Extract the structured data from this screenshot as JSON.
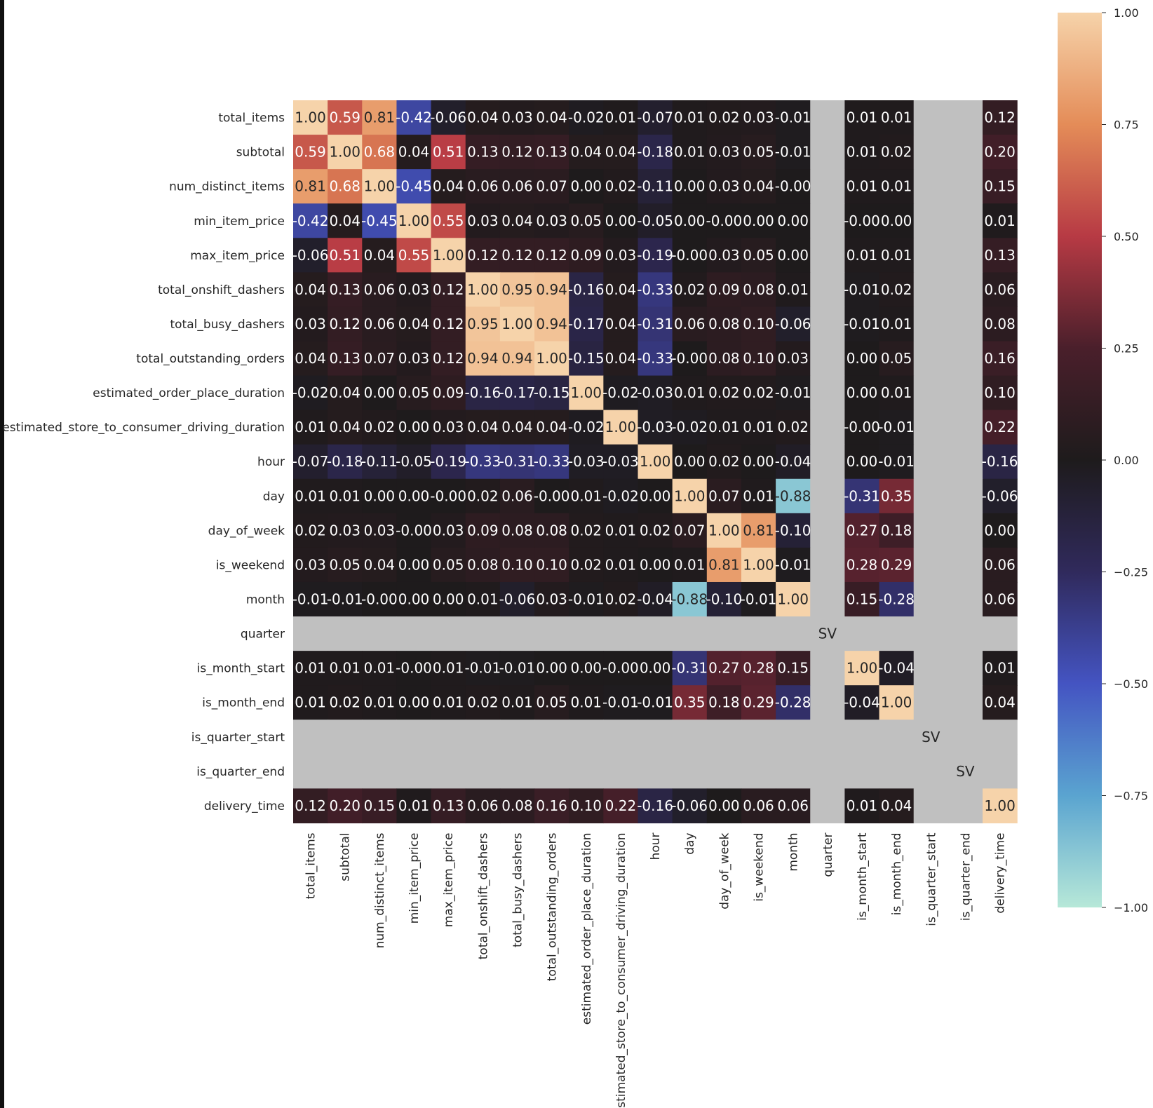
{
  "chart_data": {
    "type": "heatmap",
    "title": "",
    "xlabel": "",
    "ylabel": "",
    "labels": [
      "total_items",
      "subtotal",
      "num_distinct_items",
      "min_item_price",
      "max_item_price",
      "total_onshift_dashers",
      "total_busy_dashers",
      "total_outstanding_orders",
      "estimated_order_place_duration",
      "estimated_store_to_consumer_driving_duration",
      "hour",
      "day",
      "day_of_week",
      "is_weekend",
      "month",
      "quarter",
      "is_month_start",
      "is_month_end",
      "is_quarter_start",
      "is_quarter_end",
      "delivery_time"
    ],
    "cells": [
      [
        "1.00",
        "0.59",
        "0.81",
        "-0.42",
        "-0.06",
        "0.04",
        "0.03",
        "0.04",
        "-0.02",
        "0.01",
        "-0.07",
        "0.01",
        "0.02",
        "0.03",
        "-0.01",
        null,
        "0.01",
        "0.01",
        null,
        null,
        "0.12"
      ],
      [
        "0.59",
        "1.00",
        "0.68",
        "0.04",
        "0.51",
        "0.13",
        "0.12",
        "0.13",
        "0.04",
        "0.04",
        "-0.18",
        "0.01",
        "0.03",
        "0.05",
        "-0.01",
        null,
        "0.01",
        "0.02",
        null,
        null,
        "0.20"
      ],
      [
        "0.81",
        "0.68",
        "1.00",
        "-0.45",
        "0.04",
        "0.06",
        "0.06",
        "0.07",
        "0.00",
        "0.02",
        "-0.11",
        "0.00",
        "0.03",
        "0.04",
        "-0.00",
        null,
        "0.01",
        "0.01",
        null,
        null,
        "0.15"
      ],
      [
        "-0.42",
        "0.04",
        "-0.45",
        "1.00",
        "0.55",
        "0.03",
        "0.04",
        "0.03",
        "0.05",
        "0.00",
        "-0.05",
        "0.00",
        "-0.00",
        "0.00",
        "0.00",
        null,
        "-0.00",
        "0.00",
        null,
        null,
        "0.01"
      ],
      [
        "-0.06",
        "0.51",
        "0.04",
        "0.55",
        "1.00",
        "0.12",
        "0.12",
        "0.12",
        "0.09",
        "0.03",
        "-0.19",
        "-0.00",
        "0.03",
        "0.05",
        "0.00",
        null,
        "0.01",
        "0.01",
        null,
        null,
        "0.13"
      ],
      [
        "0.04",
        "0.13",
        "0.06",
        "0.03",
        "0.12",
        "1.00",
        "0.95",
        "0.94",
        "-0.16",
        "0.04",
        "-0.33",
        "0.02",
        "0.09",
        "0.08",
        "0.01",
        null,
        "-0.01",
        "0.02",
        null,
        null,
        "0.06"
      ],
      [
        "0.03",
        "0.12",
        "0.06",
        "0.04",
        "0.12",
        "0.95",
        "1.00",
        "0.94",
        "-0.17",
        "0.04",
        "-0.31",
        "0.06",
        "0.08",
        "0.10",
        "-0.06",
        null,
        "-0.01",
        "0.01",
        null,
        null,
        "0.08"
      ],
      [
        "0.04",
        "0.13",
        "0.07",
        "0.03",
        "0.12",
        "0.94",
        "0.94",
        "1.00",
        "-0.15",
        "0.04",
        "-0.33",
        "-0.00",
        "0.08",
        "0.10",
        "0.03",
        null,
        "0.00",
        "0.05",
        null,
        null,
        "0.16"
      ],
      [
        "-0.02",
        "0.04",
        "0.00",
        "0.05",
        "0.09",
        "-0.16",
        "-0.17",
        "-0.15",
        "1.00",
        "-0.02",
        "-0.03",
        "0.01",
        "0.02",
        "0.02",
        "-0.01",
        null,
        "0.00",
        "0.01",
        null,
        null,
        "0.10"
      ],
      [
        "0.01",
        "0.04",
        "0.02",
        "0.00",
        "0.03",
        "0.04",
        "0.04",
        "0.04",
        "-0.02",
        "1.00",
        "-0.03",
        "-0.02",
        "0.01",
        "0.01",
        "0.02",
        null,
        "-0.00",
        "-0.01",
        null,
        null,
        "0.22"
      ],
      [
        "-0.07",
        "-0.18",
        "-0.11",
        "-0.05",
        "-0.19",
        "-0.33",
        "-0.31",
        "-0.33",
        "-0.03",
        "-0.03",
        "1.00",
        "0.00",
        "0.02",
        "0.00",
        "-0.04",
        null,
        "0.00",
        "-0.01",
        null,
        null,
        "-0.16"
      ],
      [
        "0.01",
        "0.01",
        "0.00",
        "0.00",
        "-0.00",
        "0.02",
        "0.06",
        "-0.00",
        "0.01",
        "-0.02",
        "0.00",
        "1.00",
        "0.07",
        "0.01",
        "-0.88",
        null,
        "-0.31",
        "0.35",
        null,
        null,
        "-0.06"
      ],
      [
        "0.02",
        "0.03",
        "0.03",
        "-0.00",
        "0.03",
        "0.09",
        "0.08",
        "0.08",
        "0.02",
        "0.01",
        "0.02",
        "0.07",
        "1.00",
        "0.81",
        "-0.10",
        null,
        "0.27",
        "0.18",
        null,
        null,
        "0.00"
      ],
      [
        "0.03",
        "0.05",
        "0.04",
        "0.00",
        "0.05",
        "0.08",
        "0.10",
        "0.10",
        "0.02",
        "0.01",
        "0.00",
        "0.01",
        "0.81",
        "1.00",
        "-0.01",
        null,
        "0.28",
        "0.29",
        null,
        null,
        "0.06"
      ],
      [
        "-0.01",
        "-0.01",
        "-0.00",
        "0.00",
        "0.00",
        "0.01",
        "-0.06",
        "0.03",
        "-0.01",
        "0.02",
        "-0.04",
        "-0.88",
        "-0.10",
        "-0.01",
        "1.00",
        null,
        "0.15",
        "-0.28",
        null,
        null,
        "0.06"
      ],
      [
        null,
        null,
        null,
        null,
        null,
        null,
        null,
        null,
        null,
        null,
        null,
        null,
        null,
        null,
        null,
        null,
        null,
        null,
        null,
        null,
        null
      ],
      [
        "0.01",
        "0.01",
        "0.01",
        "-0.00",
        "0.01",
        "-0.01",
        "-0.01",
        "0.00",
        "0.00",
        "-0.00",
        "0.00",
        "-0.31",
        "0.27",
        "0.28",
        "0.15",
        null,
        "1.00",
        "-0.04",
        null,
        null,
        "0.01"
      ],
      [
        "0.01",
        "0.02",
        "0.01",
        "0.00",
        "0.01",
        "0.02",
        "0.01",
        "0.05",
        "0.01",
        "-0.01",
        "-0.01",
        "0.35",
        "0.18",
        "0.29",
        "-0.28",
        null,
        "-0.04",
        "1.00",
        null,
        null,
        "0.04"
      ],
      [
        null,
        null,
        null,
        null,
        null,
        null,
        null,
        null,
        null,
        null,
        null,
        null,
        null,
        null,
        null,
        null,
        null,
        null,
        null,
        null,
        null
      ],
      [
        null,
        null,
        null,
        null,
        null,
        null,
        null,
        null,
        null,
        null,
        null,
        null,
        null,
        null,
        null,
        null,
        null,
        null,
        null,
        null,
        null
      ],
      [
        "0.12",
        "0.20",
        "0.15",
        "0.01",
        "0.13",
        "0.06",
        "0.08",
        "0.16",
        "0.10",
        "0.22",
        "-0.16",
        "-0.06",
        "0.00",
        "0.06",
        "0.06",
        null,
        "0.01",
        "0.04",
        null,
        null,
        "1.00"
      ]
    ],
    "sv_annotations": [
      {
        "row": 15,
        "col": 15,
        "text": "SV"
      },
      {
        "row": 18,
        "col": 18,
        "text": "SV"
      },
      {
        "row": 19,
        "col": 19,
        "text": "SV"
      }
    ],
    "missing_color": "#c0c0c0",
    "colormap": "icefire",
    "colorbar": {
      "range": [
        -1.0,
        1.0
      ],
      "ticks": [
        "1.00",
        "0.75",
        "0.50",
        "0.25",
        "0.00",
        "−0.25",
        "−0.50",
        "−0.75",
        "−1.00"
      ],
      "placement": "right"
    }
  }
}
